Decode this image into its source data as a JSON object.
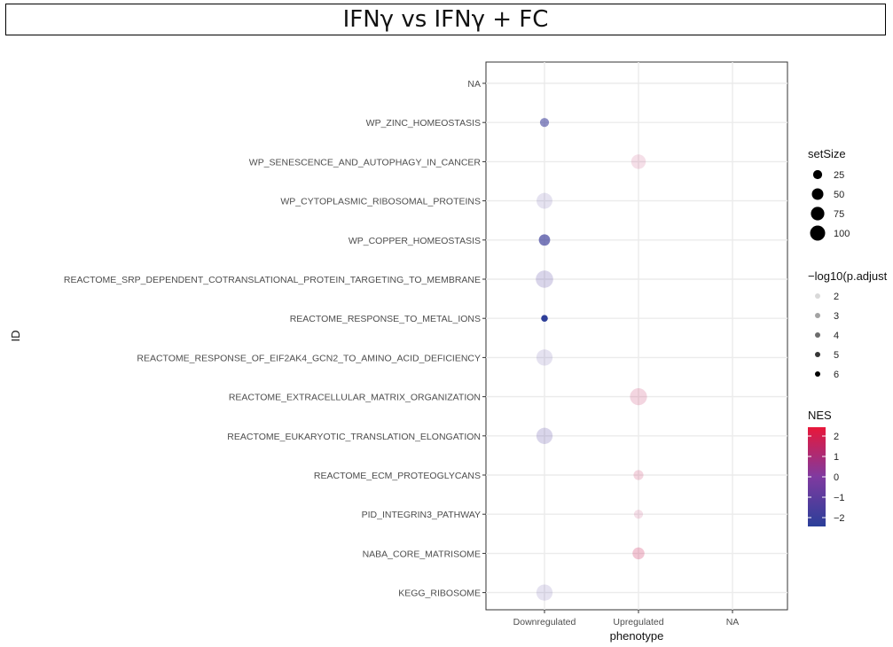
{
  "title": "IFNγ vs IFNγ + FC",
  "chart_data": {
    "type": "scatter",
    "xlabel": "phenotype",
    "ylabel": "ID",
    "x_categories": [
      "Downregulated",
      "Upregulated",
      "NA"
    ],
    "y_categories": [
      "NA",
      "WP_ZINC_HOMEOSTASIS",
      "WP_SENESCENCE_AND_AUTOPHAGY_IN_CANCER",
      "WP_CYTOPLASMIC_RIBOSOMAL_PROTEINS",
      "WP_COPPER_HOMEOSTASIS",
      "REACTOME_SRP_DEPENDENT_COTRANSLATIONAL_PROTEIN_TARGETING_TO_MEMBRANE",
      "REACTOME_RESPONSE_TO_METAL_IONS",
      "REACTOME_RESPONSE_OF_EIF2AK4_GCN2_TO_AMINO_ACID_DEFICIENCY",
      "REACTOME_EXTRACELLULAR_MATRIX_ORGANIZATION",
      "REACTOME_EUKARYOTIC_TRANSLATION_ELONGATION",
      "REACTOME_ECM_PROTEOGLYCANS",
      "PID_INTEGRIN3_PATHWAY",
      "NABA_CORE_MATRISOME",
      "KEGG_RIBOSOME"
    ],
    "points": [
      {
        "id": "WP_ZINC_HOMEOSTASIS",
        "phenotype": "Downregulated",
        "setSize": 15,
        "neglog10_padj": 4,
        "NES": -2.0
      },
      {
        "id": "WP_SENESCENCE_AND_AUTOPHAGY_IN_CANCER",
        "phenotype": "Upregulated",
        "setSize": 60,
        "neglog10_padj": 1.8,
        "NES": 1.4
      },
      {
        "id": "WP_CYTOPLASMIC_RIBOSOMAL_PROTEINS",
        "phenotype": "Downregulated",
        "setSize": 75,
        "neglog10_padj": 2,
        "NES": -1.3
      },
      {
        "id": "WP_COPPER_HOMEOSTASIS",
        "phenotype": "Downregulated",
        "setSize": 30,
        "neglog10_padj": 4.5,
        "NES": -2.0
      },
      {
        "id": "REACTOME_SRP_DEPENDENT_COTRANSLATIONAL_PROTEIN_TARGETING_TO_MEMBRANE",
        "phenotype": "Downregulated",
        "setSize": 95,
        "neglog10_padj": 2.3,
        "NES": -1.4
      },
      {
        "id": "REACTOME_RESPONSE_TO_METAL_IONS",
        "phenotype": "Downregulated",
        "setSize": 5,
        "neglog10_padj": 6,
        "NES": -2.4
      },
      {
        "id": "REACTOME_RESPONSE_OF_EIF2AK4_GCN2_TO_AMINO_ACID_DEFICIENCY",
        "phenotype": "Downregulated",
        "setSize": 80,
        "neglog10_padj": 2,
        "NES": -1.3
      },
      {
        "id": "REACTOME_EXTRACELLULAR_MATRIX_ORGANIZATION",
        "phenotype": "Upregulated",
        "setSize": 90,
        "neglog10_padj": 2.2,
        "NES": 1.6
      },
      {
        "id": "REACTOME_EUKARYOTIC_TRANSLATION_ELONGATION",
        "phenotype": "Downregulated",
        "setSize": 80,
        "neglog10_padj": 2.3,
        "NES": -1.4
      },
      {
        "id": "REACTOME_ECM_PROTEOGLYCANS",
        "phenotype": "Upregulated",
        "setSize": 20,
        "neglog10_padj": 2.2,
        "NES": 1.7
      },
      {
        "id": "PID_INTEGRIN3_PATHWAY",
        "phenotype": "Upregulated",
        "setSize": 15,
        "neglog10_padj": 1.8,
        "NES": 1.4
      },
      {
        "id": "NABA_CORE_MATRISOME",
        "phenotype": "Upregulated",
        "setSize": 35,
        "neglog10_padj": 2.5,
        "NES": 1.8
      },
      {
        "id": "KEGG_RIBOSOME",
        "phenotype": "Downregulated",
        "setSize": 80,
        "neglog10_padj": 2,
        "NES": -1.3
      }
    ],
    "legend": {
      "size": {
        "title": "setSize",
        "values": [
          25,
          50,
          75,
          100
        ]
      },
      "alpha": {
        "title": "−log10(p.adjust",
        "values": [
          2,
          3,
          4,
          5,
          6
        ]
      },
      "color": {
        "title": "NES",
        "ticks": [
          2,
          1,
          0,
          -1,
          -2
        ],
        "tick_labels": [
          "2",
          "1",
          "0",
          "−1",
          "−2"
        ],
        "low": "#2b3f99",
        "mid": "#7f3aa0",
        "high": "#e8173a"
      }
    },
    "grid": true
  }
}
